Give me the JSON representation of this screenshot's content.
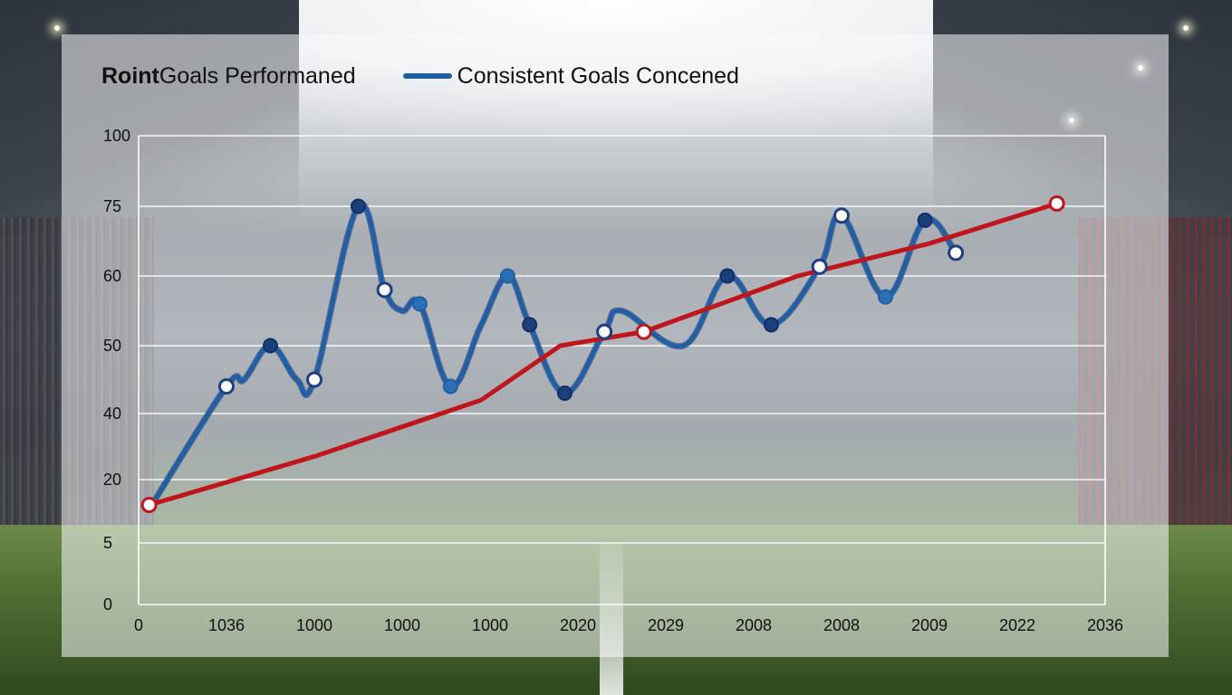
{
  "chart_data": {
    "type": "line",
    "legend": [
      {
        "label_bold": "Roint",
        "label_rest": " Goals Performaned",
        "swatch": false
      },
      {
        "label": "Consistent Goals Concened",
        "swatch": true,
        "color": "#1f5fa8"
      }
    ],
    "y_ticks": [
      "100",
      "75",
      "60",
      "50",
      "40",
      "20",
      "5",
      "0"
    ],
    "x_ticks": [
      "0",
      "1036",
      "1000",
      "1000",
      "1000",
      "2020",
      "2029",
      "2008",
      "2008",
      "2009",
      "2022",
      "2036"
    ],
    "grid": "horizontal",
    "series": [
      {
        "color": "#1f5fa8",
        "points": [
          {
            "x": 0.15,
            "y": 14,
            "marker": "none"
          },
          {
            "x": 1.0,
            "y": 44,
            "marker": "white"
          },
          {
            "x": 1.2,
            "y": 45,
            "marker": "none"
          },
          {
            "x": 1.5,
            "y": 50,
            "marker": "navy"
          },
          {
            "x": 1.8,
            "y": 45,
            "marker": "none"
          },
          {
            "x": 2.0,
            "y": 45,
            "marker": "white"
          },
          {
            "x": 2.5,
            "y": 75,
            "marker": "navy"
          },
          {
            "x": 2.8,
            "y": 58,
            "marker": "white"
          },
          {
            "x": 3.0,
            "y": 55,
            "marker": "none"
          },
          {
            "x": 3.2,
            "y": 56,
            "marker": "blue"
          },
          {
            "x": 3.55,
            "y": 44,
            "marker": "blue"
          },
          {
            "x": 3.9,
            "y": 53,
            "marker": "none"
          },
          {
            "x": 4.2,
            "y": 60,
            "marker": "blue"
          },
          {
            "x": 4.45,
            "y": 53,
            "marker": "navy"
          },
          {
            "x": 4.85,
            "y": 43,
            "marker": "navy"
          },
          {
            "x": 5.3,
            "y": 52,
            "marker": "white"
          },
          {
            "x": 5.5,
            "y": 55,
            "marker": "none"
          },
          {
            "x": 6.2,
            "y": 50,
            "marker": "none"
          },
          {
            "x": 6.7,
            "y": 60,
            "marker": "navy"
          },
          {
            "x": 7.2,
            "y": 53,
            "marker": "navy"
          },
          {
            "x": 7.75,
            "y": 62,
            "marker": "white"
          },
          {
            "x": 8.0,
            "y": 73,
            "marker": "white"
          },
          {
            "x": 8.5,
            "y": 57,
            "marker": "blue"
          },
          {
            "x": 8.95,
            "y": 72,
            "marker": "navy"
          },
          {
            "x": 9.3,
            "y": 65,
            "marker": "white"
          }
        ]
      },
      {
        "color": "#c0151b",
        "points": [
          {
            "x": 0.12,
            "y": 14,
            "marker": "white"
          },
          {
            "x": 2.0,
            "y": 27,
            "marker": "none"
          },
          {
            "x": 3.9,
            "y": 42,
            "marker": "none"
          },
          {
            "x": 4.8,
            "y": 50,
            "marker": "none"
          },
          {
            "x": 5.75,
            "y": 52,
            "marker": "white"
          },
          {
            "x": 7.5,
            "y": 60,
            "marker": "none"
          },
          {
            "x": 9.0,
            "y": 67,
            "marker": "none"
          },
          {
            "x": 10.45,
            "y": 76,
            "marker": "white"
          }
        ]
      }
    ]
  }
}
